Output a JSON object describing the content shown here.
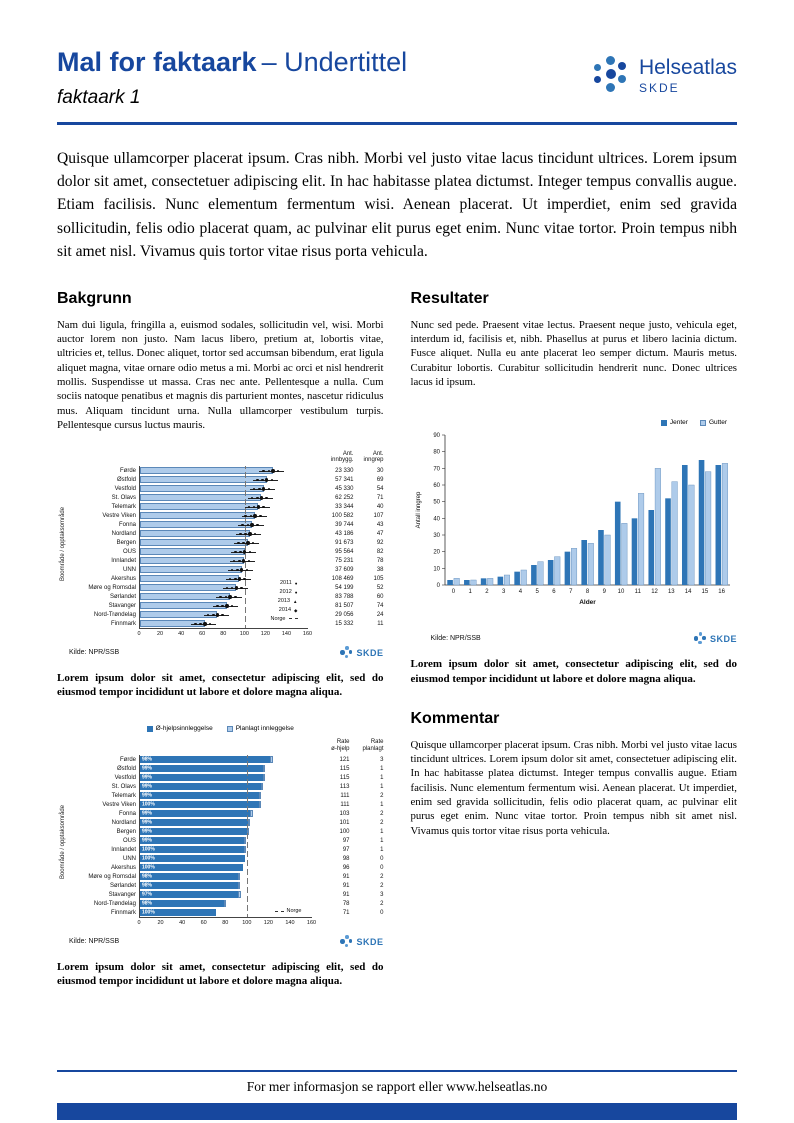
{
  "header": {
    "title": "Mal for faktaark",
    "subtitle": "– Undertittel",
    "doc_label": "faktaark 1",
    "logo": {
      "name": "Helseatlas",
      "sub": "SKDE"
    }
  },
  "branding": {
    "skde": "SKDE"
  },
  "colors": {
    "primary": "#17479E",
    "bar_light": "#AECBEA",
    "bar_dark": "#2E75B6",
    "accent_mid": "#5B9BD5"
  },
  "intro": "Quisque ullamcorper placerat ipsum. Cras nibh. Morbi vel justo vitae lacus tincidunt ultrices. Lorem ipsum dolor sit amet, consectetuer adipiscing elit. In hac habitasse platea dictumst. Integer tempus convallis augue. Etiam facilisis. Nunc elementum fermentum wisi. Aenean placerat. Ut imperdiet, enim sed gravida sollicitudin, felis odio placerat quam, ac pulvinar elit purus eget enim. Nunc vitae tortor. Proin tempus nibh sit amet nisl. Vivamus quis tortor vitae risus porta vehicula.",
  "sections": {
    "bakgrunn": {
      "heading": "Bakgrunn",
      "body": "Nam dui ligula, fringilla a, euismod sodales, sollicitudin vel, wisi. Morbi auctor lorem non justo. Nam lacus libero, pretium at, lobortis vitae, ultricies et, tellus. Donec aliquet, tortor sed accumsan bibendum, erat ligula aliquet magna, vitae ornare odio metus a mi. Morbi ac orci et nisl hendrerit mollis. Suspendisse ut massa. Cras nec ante. Pellentesque a nulla. Cum sociis natoque penatibus et magnis dis parturient montes, nascetur ridiculus mus. Aliquam tincidunt urna. Nulla ullamcorper vestibulum turpis. Pellentesque cursus luctus mauris."
    },
    "resultater": {
      "heading": "Resultater",
      "body": "Nunc sed pede. Praesent vitae lectus. Praesent neque justo, vehicula eget, interdum id, facilisis et, nibh. Phasellus at purus et libero lacinia dictum. Fusce aliquet. Nulla eu ante placerat leo semper dictum. Mauris metus. Curabitur lobortis. Curabitur sollicitudin hendrerit nunc. Donec ultrices lacus id ipsum."
    },
    "kommentar": {
      "heading": "Kommentar",
      "body": "Quisque ullamcorper placerat ipsum. Cras nibh. Morbi vel justo vitae lacus tincidunt ultrices. Lorem ipsum dolor sit amet, consectetuer adipiscing elit. In hac habitasse platea dictumst. Integer tempus convallis augue. Etiam facilisis. Nunc elementum fermentum wisi. Aenean placerat. Ut imperdiet, enim sed gravida sollicitudin, felis odio placerat quam, ac pulvinar elit purus eget enim. Nunc vitae tortor. Proin tempus nibh sit amet nisl. Vivamus quis tortor vitae risus porta vehicula."
    }
  },
  "captions": {
    "chart1": "Lorem ipsum dolor sit amet, consectetur adipiscing elit, sed do eiusmod tempor incididunt ut labore et dolore magna aliqua.",
    "chart2": "Lorem ipsum dolor sit amet, consectetur adipiscing elit, sed do eiusmod tempor incididunt ut labore et dolore magna aliqua.",
    "chart3": "Lorem ipsum dolor sit amet, consectetur adipiscing elit, sed do eiusmod tempor incididunt ut labore et dolore magna aliqua."
  },
  "footer": {
    "text": "For mer informasjon se rapport eller www.helseatlas.no"
  },
  "chart_data": [
    {
      "type": "bar",
      "orientation": "horizontal",
      "ylabel": "Boområde / opptaksområde",
      "xlim": [
        0,
        160
      ],
      "xticks": [
        0,
        20,
        40,
        60,
        80,
        100,
        120,
        140,
        160
      ],
      "reference_line": 100,
      "legend": [
        "2011",
        "2012",
        "2013",
        "2014",
        "Norge"
      ],
      "col_headers": [
        "Ant. innbygg.",
        "Ant. inngrep"
      ],
      "source": "Kilde: NPR/SSB",
      "rows": [
        {
          "label": "Førde",
          "rate": 127,
          "innbygg": "23 330",
          "inngrep": "30"
        },
        {
          "label": "Østfold",
          "rate": 121,
          "innbygg": "57 341",
          "inngrep": "69"
        },
        {
          "label": "Vestfold",
          "rate": 118,
          "innbygg": "45 330",
          "inngrep": "54"
        },
        {
          "label": "St. Olavs",
          "rate": 116,
          "innbygg": "62 252",
          "inngrep": "71"
        },
        {
          "label": "Telemark",
          "rate": 113,
          "innbygg": "33 344",
          "inngrep": "40"
        },
        {
          "label": "Vestre Viken",
          "rate": 110,
          "innbygg": "100 582",
          "inngrep": "107"
        },
        {
          "label": "Fonna",
          "rate": 107,
          "innbygg": "39 744",
          "inngrep": "43"
        },
        {
          "label": "Nordland",
          "rate": 105,
          "innbygg": "43 186",
          "inngrep": "47"
        },
        {
          "label": "Bergen",
          "rate": 103,
          "innbygg": "91 673",
          "inngrep": "92"
        },
        {
          "label": "OUS",
          "rate": 100,
          "innbygg": "95 564",
          "inngrep": "82"
        },
        {
          "label": "Innlandet",
          "rate": 99,
          "innbygg": "75 231",
          "inngrep": "78"
        },
        {
          "label": "UNN",
          "rate": 97,
          "innbygg": "37 609",
          "inngrep": "38"
        },
        {
          "label": "Akershus",
          "rate": 95,
          "innbygg": "108 469",
          "inngrep": "105"
        },
        {
          "label": "Møre og Romsdal",
          "rate": 92,
          "innbygg": "54 199",
          "inngrep": "52"
        },
        {
          "label": "Sørlandet",
          "rate": 86,
          "innbygg": "83 788",
          "inngrep": "60"
        },
        {
          "label": "Stavanger",
          "rate": 83,
          "innbygg": "81 507",
          "inngrep": "74"
        },
        {
          "label": "Nord-Trøndelag",
          "rate": 74,
          "innbygg": "29 056",
          "inngrep": "24"
        },
        {
          "label": "Finnmark",
          "rate": 62,
          "innbygg": "15 332",
          "inngrep": "11"
        }
      ]
    },
    {
      "type": "bar",
      "orientation": "horizontal",
      "stacked": true,
      "ylabel": "Boområde / opptaksområde",
      "xlim": [
        0,
        160
      ],
      "xticks": [
        0,
        20,
        40,
        60,
        80,
        100,
        120,
        140,
        160
      ],
      "reference_line": 100,
      "legend": [
        "Ø-hjelpsinnleggelse",
        "Planlagt innleggelse"
      ],
      "norge_label": "Norge",
      "col_headers": [
        "Rate ø-hjelp",
        "Rate planlagt"
      ],
      "source": "Kilde: NPR/SSB",
      "rows": [
        {
          "label": "Førde",
          "pct": "98%",
          "rate_ohjelp": 121,
          "rate_planlagt": 3
        },
        {
          "label": "Østfold",
          "pct": "99%",
          "rate_ohjelp": 115,
          "rate_planlagt": 1
        },
        {
          "label": "Vestfold",
          "pct": "99%",
          "rate_ohjelp": 115,
          "rate_planlagt": 1
        },
        {
          "label": "St. Olavs",
          "pct": "99%",
          "rate_ohjelp": 113,
          "rate_planlagt": 1
        },
        {
          "label": "Telemark",
          "pct": "99%",
          "rate_ohjelp": 111,
          "rate_planlagt": 2
        },
        {
          "label": "Vestre Viken",
          "pct": "100%",
          "rate_ohjelp": 111,
          "rate_planlagt": 1
        },
        {
          "label": "Fonna",
          "pct": "99%",
          "rate_ohjelp": 103,
          "rate_planlagt": 2
        },
        {
          "label": "Nordland",
          "pct": "99%",
          "rate_ohjelp": 101,
          "rate_planlagt": 2
        },
        {
          "label": "Bergen",
          "pct": "99%",
          "rate_ohjelp": 100,
          "rate_planlagt": 1
        },
        {
          "label": "OUS",
          "pct": "99%",
          "rate_ohjelp": 97,
          "rate_planlagt": 1
        },
        {
          "label": "Innlandet",
          "pct": "100%",
          "rate_ohjelp": 97,
          "rate_planlagt": 1
        },
        {
          "label": "UNN",
          "pct": "100%",
          "rate_ohjelp": 98,
          "rate_planlagt": 0
        },
        {
          "label": "Akershus",
          "pct": "100%",
          "rate_ohjelp": 96,
          "rate_planlagt": 0
        },
        {
          "label": "Møre og Romsdal",
          "pct": "98%",
          "rate_ohjelp": 91,
          "rate_planlagt": 2
        },
        {
          "label": "Sørlandet",
          "pct": "98%",
          "rate_ohjelp": 91,
          "rate_planlagt": 2
        },
        {
          "label": "Stavanger",
          "pct": "97%",
          "rate_ohjelp": 91,
          "rate_planlagt": 3
        },
        {
          "label": "Nord-Trøndelag",
          "pct": "98%",
          "rate_ohjelp": 78,
          "rate_planlagt": 2
        },
        {
          "label": "Finnmark",
          "pct": "100%",
          "rate_ohjelp": 71,
          "rate_planlagt": 0
        }
      ]
    },
    {
      "type": "bar",
      "orientation": "vertical",
      "categories": [
        "0",
        "1",
        "2",
        "3",
        "4",
        "5",
        "6",
        "7",
        "8",
        "9",
        "10",
        "11",
        "12",
        "13",
        "14",
        "15",
        "16"
      ],
      "series": [
        {
          "name": "Jenter",
          "values": [
            3,
            3,
            4,
            5,
            8,
            12,
            15,
            20,
            27,
            33,
            50,
            40,
            45,
            52,
            72,
            75,
            72
          ]
        },
        {
          "name": "Gutter",
          "values": [
            4,
            3,
            4,
            6,
            9,
            14,
            17,
            22,
            25,
            30,
            37,
            55,
            70,
            62,
            60,
            68,
            73
          ]
        }
      ],
      "xlabel": "Alder",
      "ylabel": "Antall inngrep",
      "ylim": [
        0,
        90
      ],
      "yticks": [
        0,
        10,
        20,
        30,
        40,
        50,
        60,
        70,
        80,
        90
      ],
      "source": "Kilde: NPR/SSB"
    }
  ]
}
